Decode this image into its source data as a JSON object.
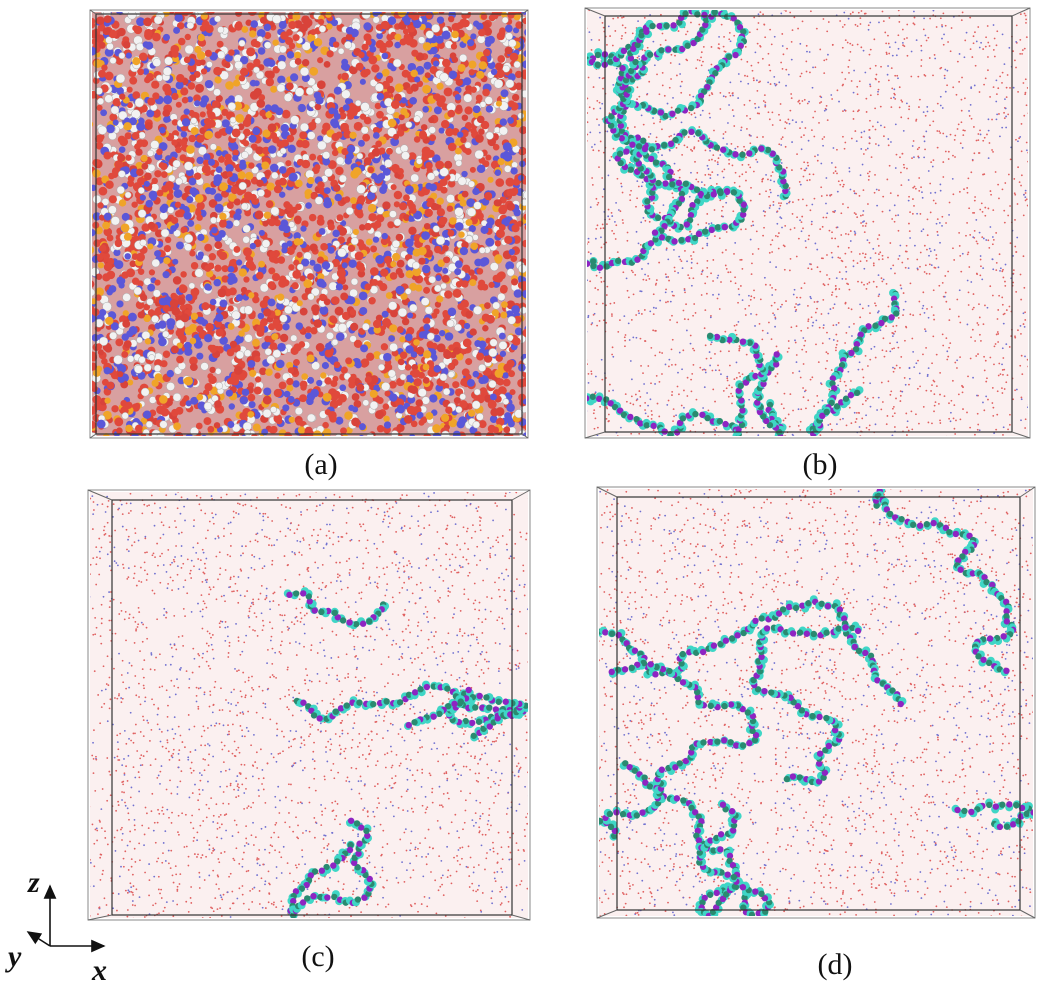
{
  "panels": [
    {
      "label": "(a)"
    },
    {
      "label": "(b)"
    },
    {
      "label": "(c)"
    },
    {
      "label": "(d)"
    }
  ],
  "axes": {
    "z": "z",
    "y": "y",
    "x": "x"
  }
}
